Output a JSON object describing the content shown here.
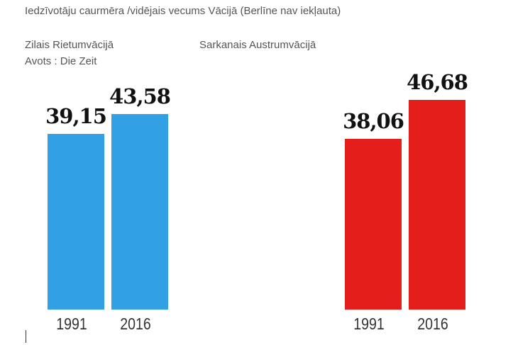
{
  "chart_data": {
    "type": "bar",
    "title": "Iedzīvotāju caurmēra /vidējais vecums  Vācijā (Berlīne nav iekļauta)",
    "legend": [
      "Zilais Rietumvācijā",
      "Sarkanais Austrumvācijā"
    ],
    "source": "Avots : Die Zeit",
    "categories": [
      "1991",
      "2016"
    ],
    "series": [
      {
        "name": "Rietumvācija",
        "color": "#31a0e4",
        "values": [
          39.15,
          43.58
        ],
        "labels": [
          "39,15",
          "43,58"
        ]
      },
      {
        "name": "Austrumvācija",
        "color": "#e41f1b",
        "values": [
          38.06,
          46.68
        ],
        "labels": [
          "38,06",
          "46,68"
        ]
      }
    ],
    "ylim": [
      0,
      50
    ]
  }
}
